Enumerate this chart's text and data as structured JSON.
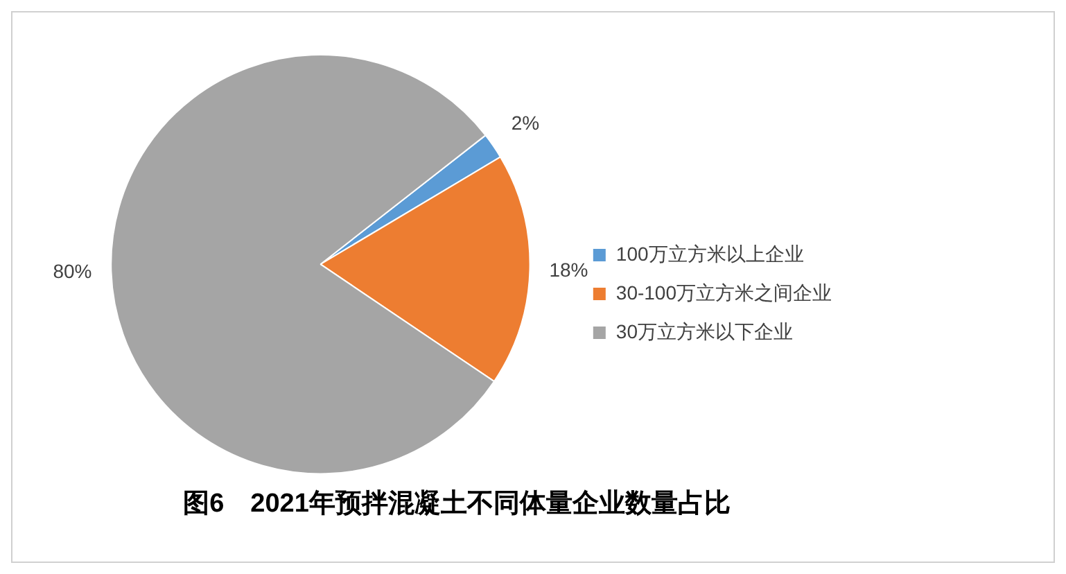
{
  "chart_data": {
    "type": "pie",
    "title": "图6　2021年预拌混凝土不同体量企业数量占比",
    "categories": [
      "100万立方米以上企业",
      "30-100万立方米之间企业",
      "30万立方米以下企业"
    ],
    "values": [
      2,
      18,
      80
    ],
    "colors": [
      "#5b9bd5",
      "#ed7d31",
      "#a5a5a5"
    ],
    "value_labels": [
      "2%",
      "18%",
      "80%"
    ],
    "legend": "right"
  }
}
